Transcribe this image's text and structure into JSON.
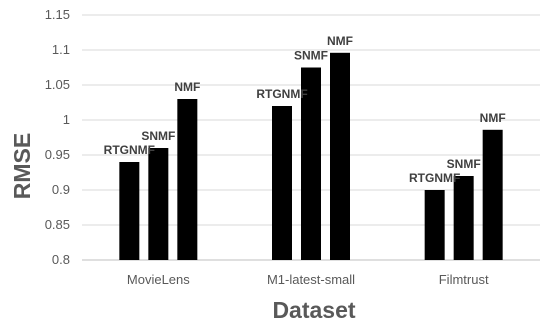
{
  "chart_data": {
    "type": "bar",
    "title": "",
    "xlabel": "Dataset",
    "ylabel": "RMSE",
    "ylim": [
      0.8,
      1.15
    ],
    "yticks": [
      "0.8",
      "0.85",
      "0.9",
      "0.95",
      "1",
      "1.05",
      "1.1",
      "1.15"
    ],
    "grid": true,
    "legend": "none",
    "categories": [
      "MovieLens",
      "M1-latest-small",
      "Filmtrust"
    ],
    "bar_color": "#000000",
    "groups": [
      {
        "category": "MovieLens",
        "bars": [
          {
            "label": "RTGNMF",
            "value": 0.94
          },
          {
            "label": "SNMF",
            "value": 0.96
          },
          {
            "label": "NMF",
            "value": 1.03
          }
        ]
      },
      {
        "category": "M1-latest-small",
        "bars": [
          {
            "label": "RTGNMF",
            "value": 1.02
          },
          {
            "label": "SNMF",
            "value": 1.075
          },
          {
            "label": "NMF",
            "value": 1.096
          }
        ]
      },
      {
        "category": "Filmtrust",
        "bars": [
          {
            "label": "RTGNMF",
            "value": 0.9
          },
          {
            "label": "SNMF",
            "value": 0.92
          },
          {
            "label": "NMF",
            "value": 0.986
          }
        ]
      }
    ]
  }
}
